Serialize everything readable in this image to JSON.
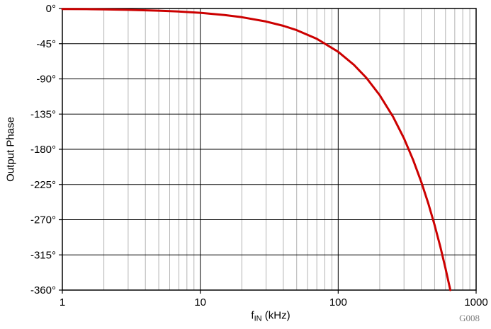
{
  "chart_data": {
    "type": "line",
    "x_scale": "log",
    "x": [
      1,
      1.5,
      2,
      3,
      5,
      7,
      10,
      15,
      20,
      30,
      40,
      50,
      70,
      100,
      130,
      160,
      200,
      250,
      300,
      350,
      400,
      450,
      500,
      550,
      600,
      650
    ],
    "series": [
      {
        "name": "Output Phase",
        "color": "#cc0000",
        "values": [
          -0.6,
          -0.8,
          -1.1,
          -1.7,
          -2.8,
          -3.9,
          -5.5,
          -8.3,
          -11.1,
          -16.6,
          -22.2,
          -27.7,
          -38.8,
          -55.4,
          -72.0,
          -88.6,
          -110.8,
          -138.5,
          -166.1,
          -193.8,
          -221.5,
          -249.2,
          -276.9,
          -304.6,
          -332.3,
          -360.0
        ]
      }
    ],
    "xlabel": {
      "prefix": "f",
      "subscript": "IN",
      "suffix": " (kHz)"
    },
    "ylabel": "Output Phase",
    "xlim": [
      1,
      1000
    ],
    "ylim": [
      -360,
      0
    ],
    "x_ticks": [
      1,
      10,
      100,
      1000
    ],
    "x_tick_labels": [
      "1",
      "10",
      "100",
      "1000"
    ],
    "y_ticks": [
      0,
      -45,
      -90,
      -135,
      -180,
      -225,
      -270,
      -315,
      -360
    ],
    "y_tick_labels": [
      "0°",
      "-45°",
      "-90°",
      "-135°",
      "-180°",
      "-225°",
      "-270°",
      "-315°",
      "-360°"
    ],
    "grid": {
      "h_color": "#000000",
      "major_v_color": "#000000",
      "minor_v_color": "#b3b3b3"
    },
    "annotation": "G008"
  }
}
